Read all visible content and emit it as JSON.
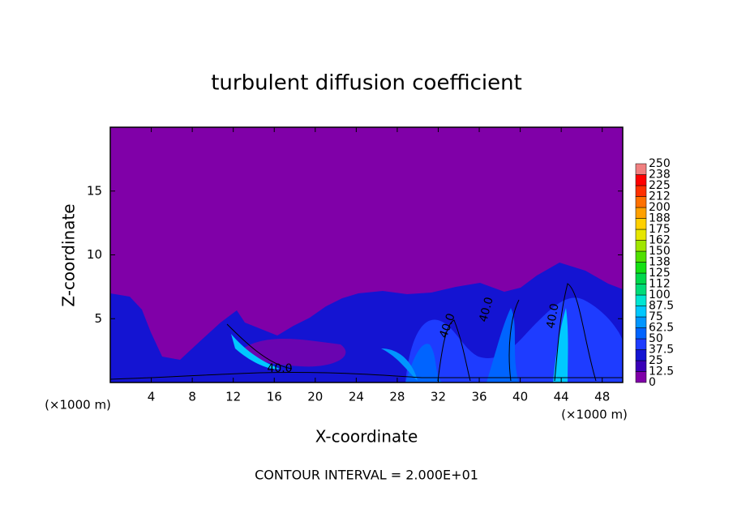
{
  "chart_data": {
    "type": "contour",
    "title": "turbulent diffusion coefficient",
    "xlabel": "X-coordinate",
    "ylabel": "Z-coordinate",
    "x_unit": "(×1000 m)",
    "y_unit": "(×1000 m)",
    "xlim": [
      0,
      50
    ],
    "xticks": [
      4,
      8,
      12,
      16,
      20,
      24,
      28,
      32,
      36,
      40,
      44,
      48
    ],
    "ylim": [
      0,
      20
    ],
    "yticks": [
      5,
      10,
      15
    ],
    "contour_labels": [
      "40.0",
      "40.0",
      "40.0",
      "40.0"
    ],
    "footer": "CONTOUR INTERVAL = 2.000E+01",
    "colorbar": {
      "levels": [
        0,
        12.5,
        25,
        37.5,
        50,
        62.5,
        75,
        87.5,
        100,
        112,
        125,
        138,
        150,
        162,
        175,
        188,
        200,
        212,
        225,
        238,
        250
      ],
      "colors": [
        "#8000a8",
        "#3a00b8",
        "#1414d2",
        "#1e3cff",
        "#0064ff",
        "#0096ff",
        "#00c8ff",
        "#00e6d2",
        "#00dc78",
        "#00d84c",
        "#14e014",
        "#50e000",
        "#a0e600",
        "#e6e600",
        "#ffd000",
        "#ffa000",
        "#ff7000",
        "#ff3000",
        "#ff0000",
        "#f08080"
      ]
    }
  }
}
